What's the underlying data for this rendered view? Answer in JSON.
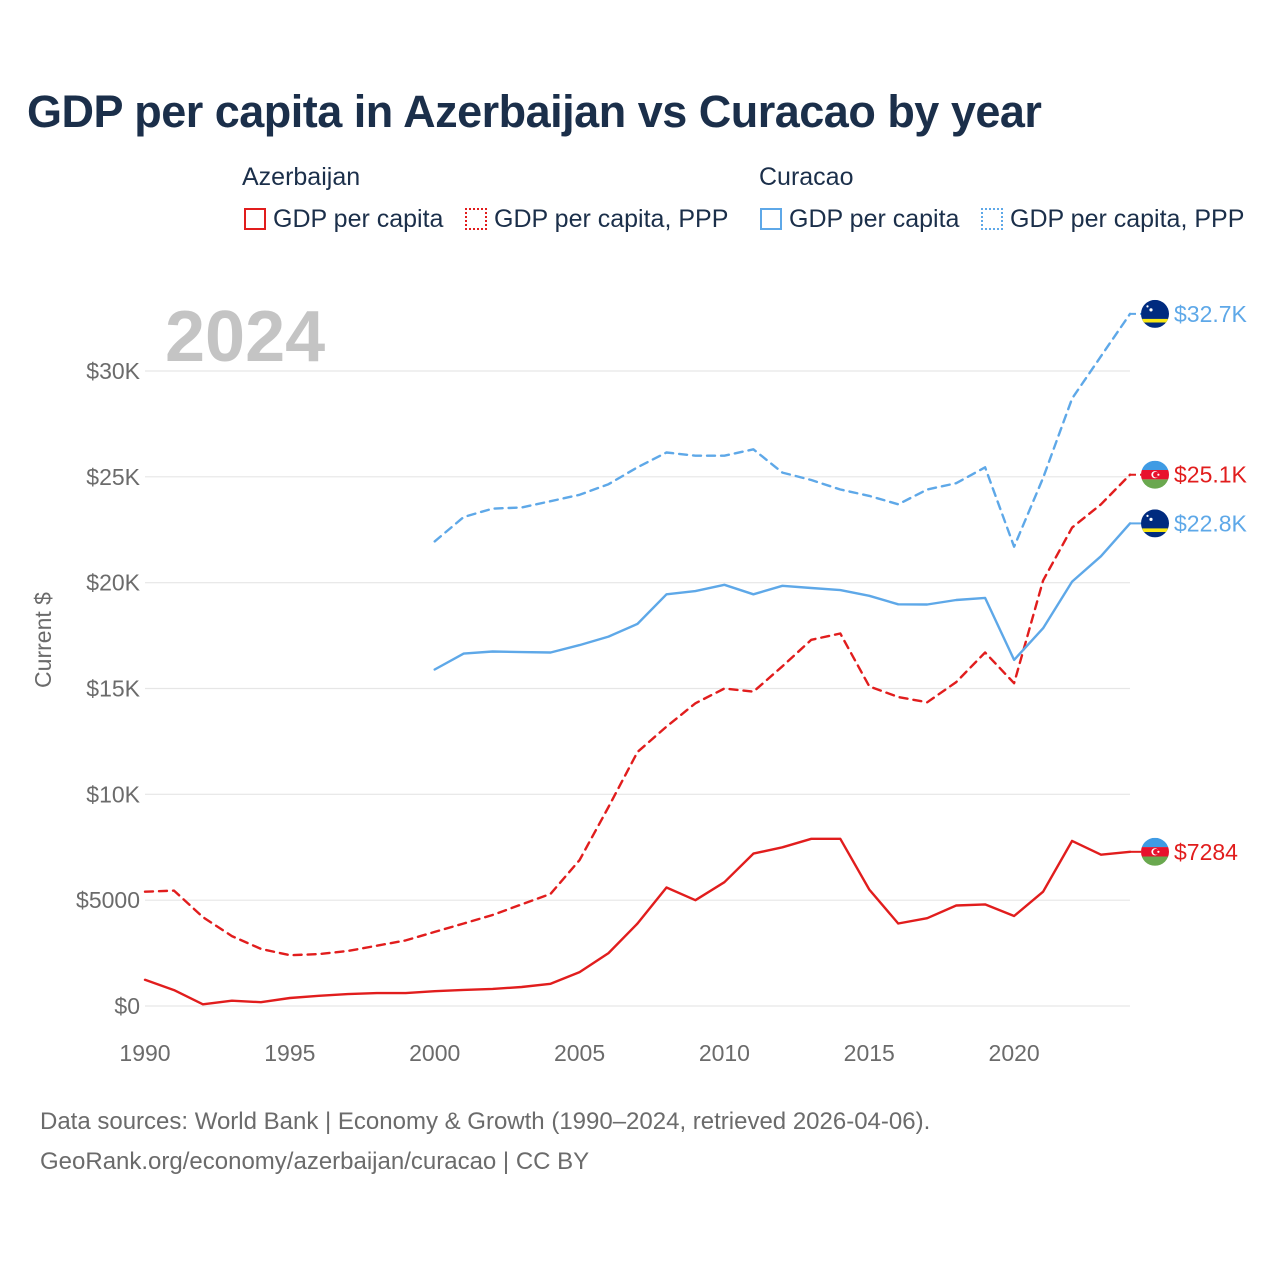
{
  "title": "GDP per capita in Azerbaijan vs Curacao by year",
  "legend": {
    "azerbaijan_label": "Azerbaijan",
    "curacao_label": "Curacao",
    "az_gdp": "GDP per capita",
    "az_ppp": "GDP per capita, PPP",
    "cw_gdp": "GDP per capita",
    "cw_ppp": "GDP per capita, PPP"
  },
  "year_overlay": "2024",
  "footer": {
    "line1": "Data sources: World Bank | Economy & Growth (1990–2024, retrieved 2026-04-06).",
    "line2": "GeoRank.org/economy/azerbaijan/curacao | CC BY"
  },
  "colors": {
    "azerbaijan": "#e11d1d",
    "curacao": "#5ea8e8"
  },
  "chart_data": {
    "type": "line",
    "title": "GDP per capita in Azerbaijan vs Curacao by year",
    "xlabel": "",
    "ylabel": "Current $",
    "xlim": [
      1990,
      2024
    ],
    "ylim": [
      0,
      32700
    ],
    "x_ticks": [
      1990,
      1995,
      2000,
      2005,
      2010,
      2015,
      2020
    ],
    "x_tick_labels": [
      "1990",
      "1995",
      "2000",
      "2005",
      "2010",
      "2015",
      "2020"
    ],
    "y_ticks": [
      0,
      5000,
      10000,
      15000,
      20000,
      25000,
      30000
    ],
    "y_tick_labels": [
      "$0",
      "$5000",
      "$10K",
      "$15K",
      "$20K",
      "$25K",
      "$30K"
    ],
    "series": [
      {
        "name": "Azerbaijan GDP per capita",
        "country": "Azerbaijan",
        "color": "#e11d1d",
        "style": "solid",
        "end_label": "$7284",
        "x": [
          1990,
          1991,
          1992,
          1993,
          1994,
          1995,
          1996,
          1997,
          1998,
          1999,
          2000,
          2001,
          2002,
          2003,
          2004,
          2005,
          2006,
          2007,
          2008,
          2009,
          2010,
          2011,
          2012,
          2013,
          2014,
          2015,
          2016,
          2017,
          2018,
          2019,
          2020,
          2021,
          2022,
          2023,
          2024
        ],
        "values": [
          1240,
          750,
          80,
          250,
          180,
          380,
          480,
          560,
          610,
          610,
          700,
          760,
          810,
          900,
          1050,
          1600,
          2500,
          3900,
          5600,
          5000,
          5850,
          7200,
          7500,
          7900,
          7900,
          5500,
          3900,
          4150,
          4750,
          4800,
          4250,
          5400,
          7800,
          7150,
          7284
        ]
      },
      {
        "name": "Azerbaijan GDP per capita, PPP",
        "country": "Azerbaijan",
        "color": "#e11d1d",
        "style": "dashed",
        "end_label": "$25.1K",
        "x": [
          1990,
          1991,
          1992,
          1993,
          1994,
          1995,
          1996,
          1997,
          1998,
          1999,
          2000,
          2001,
          2002,
          2003,
          2004,
          2005,
          2006,
          2007,
          2008,
          2009,
          2010,
          2011,
          2012,
          2013,
          2014,
          2015,
          2016,
          2017,
          2018,
          2019,
          2020,
          2021,
          2022,
          2023,
          2024
        ],
        "values": [
          5400,
          5450,
          4200,
          3300,
          2700,
          2400,
          2450,
          2600,
          2850,
          3100,
          3500,
          3900,
          4300,
          4800,
          5300,
          6900,
          9400,
          12000,
          13200,
          14300,
          15000,
          14850,
          16050,
          17300,
          17600,
          15100,
          14600,
          14350,
          15300,
          16700,
          15250,
          20100,
          22600,
          23700,
          25100
        ]
      },
      {
        "name": "Curacao GDP per capita",
        "country": "Curacao",
        "color": "#5ea8e8",
        "style": "solid",
        "end_label": "$22.8K",
        "x": [
          2000,
          2001,
          2002,
          2003,
          2004,
          2005,
          2006,
          2007,
          2008,
          2009,
          2010,
          2011,
          2012,
          2013,
          2014,
          2015,
          2016,
          2017,
          2018,
          2019,
          2020,
          2021,
          2022,
          2023,
          2024
        ],
        "values": [
          15900,
          16650,
          16750,
          16720,
          16700,
          17050,
          17450,
          18050,
          19450,
          19600,
          19900,
          19450,
          19850,
          19750,
          19650,
          19380,
          18980,
          18970,
          19180,
          19280,
          16350,
          17850,
          20050,
          21250,
          22800
        ]
      },
      {
        "name": "Curacao GDP per capita, PPP",
        "country": "Curacao",
        "color": "#5ea8e8",
        "style": "dashed",
        "end_label": "$32.7K",
        "x": [
          2000,
          2001,
          2002,
          2003,
          2004,
          2005,
          2006,
          2007,
          2008,
          2009,
          2010,
          2011,
          2012,
          2013,
          2014,
          2015,
          2016,
          2017,
          2018,
          2019,
          2020,
          2021,
          2022,
          2023,
          2024
        ],
        "values": [
          21950,
          23100,
          23500,
          23550,
          23850,
          24150,
          24650,
          25450,
          26150,
          26000,
          26000,
          26300,
          25200,
          24850,
          24400,
          24100,
          23700,
          24400,
          24700,
          25450,
          21700,
          24950,
          28700,
          30700,
          32700
        ]
      }
    ]
  }
}
